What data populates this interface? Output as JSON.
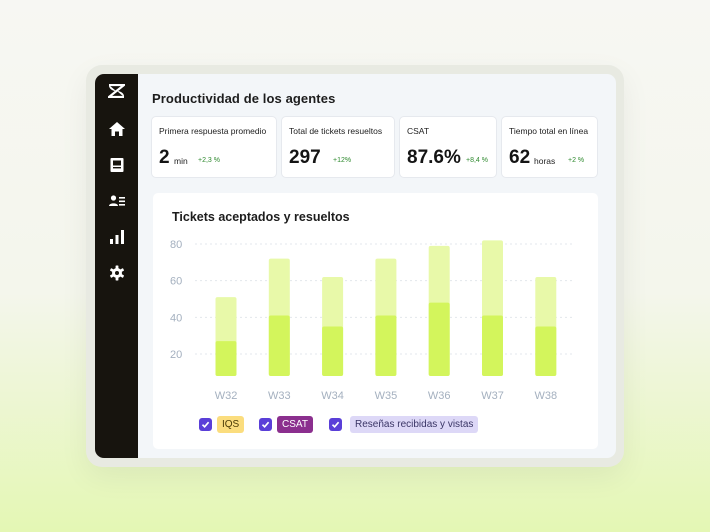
{
  "page_title": "Productividad de los agentes",
  "sidebar": {
    "items": [
      {
        "icon": "zendesk-logo-icon"
      },
      {
        "icon": "home-icon"
      },
      {
        "icon": "inbox-icon"
      },
      {
        "icon": "contacts-icon"
      },
      {
        "icon": "reports-icon"
      },
      {
        "icon": "gear-icon"
      }
    ]
  },
  "stats": [
    {
      "label": "Primera respuesta promedio",
      "value": "2",
      "unit": "min",
      "change": "+2,3 %"
    },
    {
      "label": "Total de tickets resueltos",
      "value": "297",
      "unit": "",
      "change": "+12%"
    },
    {
      "label": "CSAT",
      "value": "87.6%",
      "unit": "",
      "change": "+8,4 %"
    },
    {
      "label": "Tiempo total en línea",
      "value": "62",
      "unit": "horas",
      "change": "+2 %"
    }
  ],
  "chart": {
    "title": "Tickets aceptados y resueltos",
    "legend": [
      {
        "label": "IQS",
        "checked": true,
        "color": "#fbdd7e"
      },
      {
        "label": "CSAT",
        "checked": true,
        "color": "#8b2f8e"
      },
      {
        "label": "Reseñas recibidas y vistas",
        "checked": true,
        "color": "#ddd8f7"
      }
    ]
  },
  "chart_data": {
    "type": "bar",
    "title": "Tickets aceptados y resueltos",
    "categories": [
      "W32",
      "W33",
      "W34",
      "W35",
      "W36",
      "W37",
      "W38"
    ],
    "series": [
      {
        "values": [
          27,
          41,
          35,
          41,
          48,
          41,
          35
        ],
        "color": "#d3f55c"
      },
      {
        "values": [
          51,
          72,
          62,
          72,
          79,
          82,
          62
        ],
        "color": "#e8f9a9"
      }
    ],
    "yticks": [
      20,
      40,
      60,
      80
    ],
    "ylim": [
      8,
      86
    ],
    "grid": true,
    "colors": {
      "axis_text": "#a4b0bf",
      "grid": "#e3e7ec"
    }
  }
}
